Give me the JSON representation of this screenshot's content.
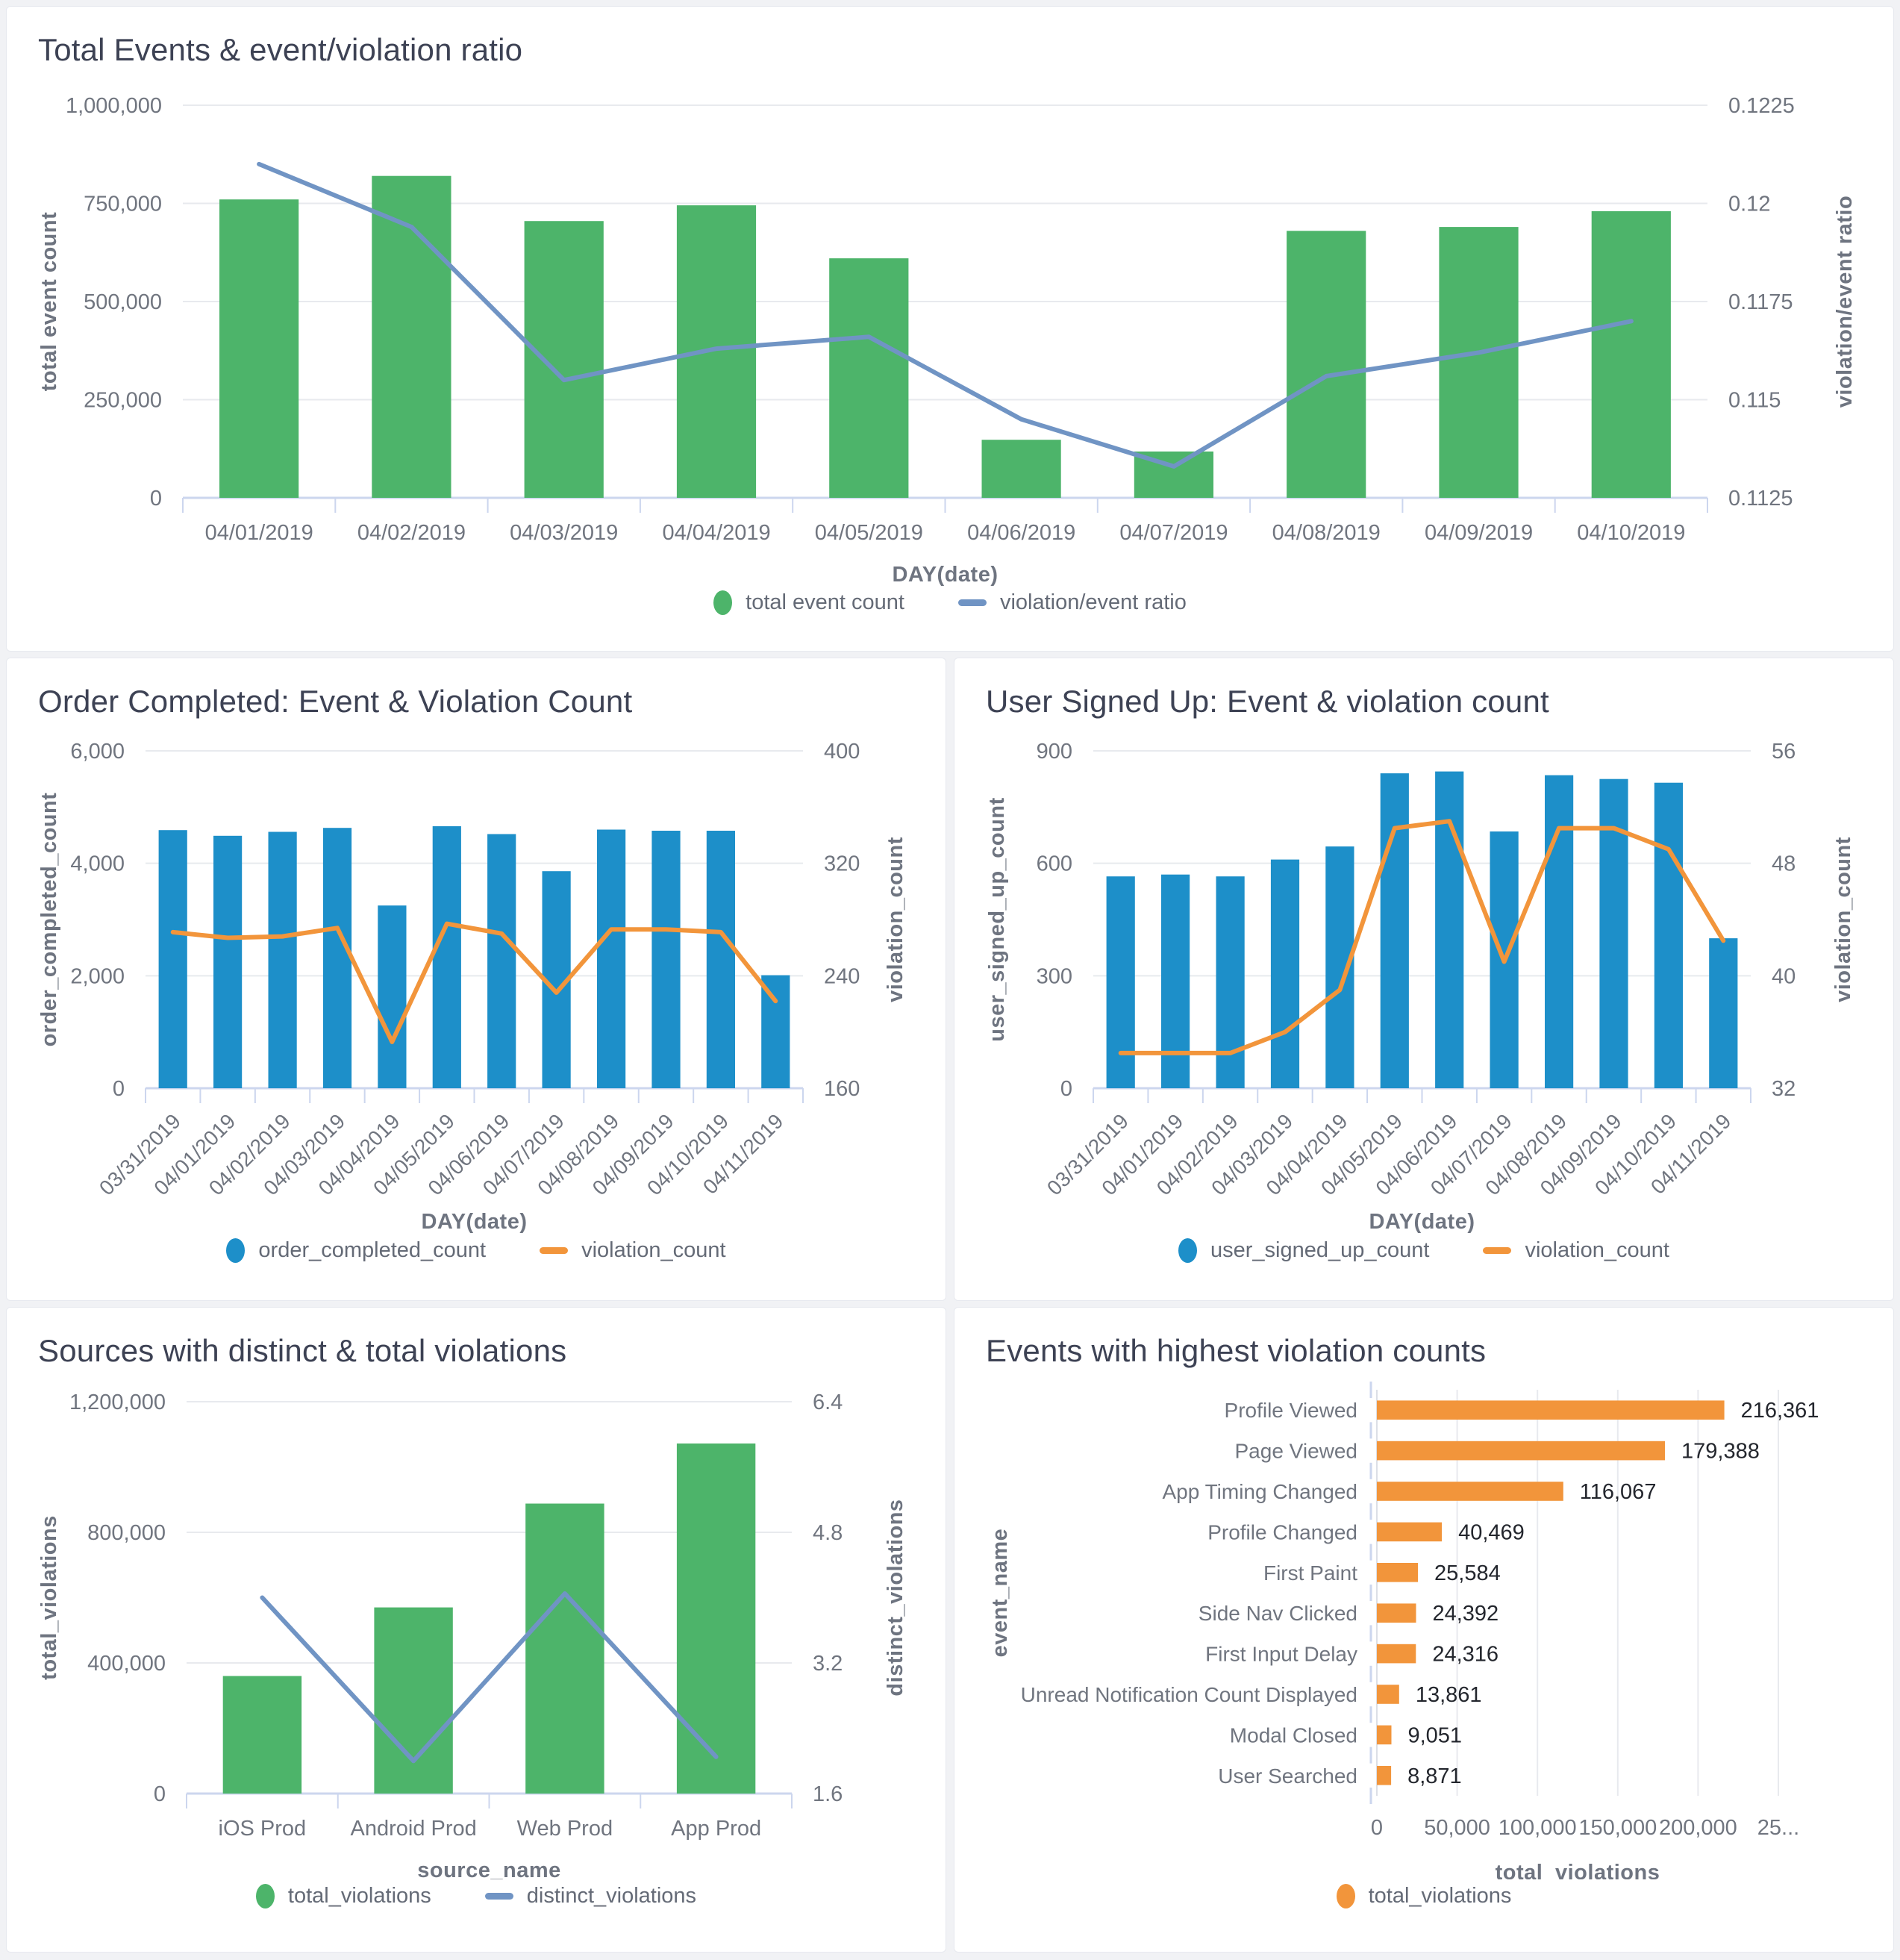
{
  "colors": {
    "green": "#4db46a",
    "blue": "#1d8fc9",
    "orange": "#f2953b",
    "slate_line": "#7094c4",
    "grid": "#e8eaee",
    "axis_line": "#ccd6ee",
    "tick_mark": "#ccd6ee",
    "tick_text": "#70757f",
    "axis_title": "#6e7480",
    "panel_title": "#3d4254",
    "value_label": "#23262d"
  },
  "chart_data": [
    {
      "type": "combo",
      "title": "Total Events & event/violation ratio",
      "categories": [
        "04/01/2019",
        "04/02/2019",
        "04/03/2019",
        "04/04/2019",
        "04/05/2019",
        "04/06/2019",
        "04/07/2019",
        "04/08/2019",
        "04/09/2019",
        "04/10/2019"
      ],
      "bar_series": {
        "name": "total event count",
        "color": "#4db46a",
        "values": [
          760000,
          820000,
          705000,
          745000,
          610000,
          148000,
          118000,
          680000,
          690000,
          730000
        ]
      },
      "line_series": {
        "name": "violation/event ratio",
        "color": "#7094c4",
        "values": [
          0.121,
          0.1194,
          0.1155,
          0.1163,
          0.1166,
          0.1145,
          0.1133,
          0.1156,
          0.1162,
          0.117
        ]
      },
      "left_axis": {
        "title": "total event count",
        "min": 0,
        "max": 1000000,
        "ticks": [
          "0",
          "250,000",
          "500,000",
          "750,000",
          "1,000,000"
        ]
      },
      "right_axis": {
        "title": "violation/event ratio",
        "min": 0.1125,
        "max": 0.1225,
        "ticks": [
          "0.1125",
          "0.115",
          "0.1175",
          "0.12",
          "0.1225"
        ]
      },
      "x_title": "DAY(date)",
      "rotated_labels": false,
      "legend": [
        {
          "label": "total event count",
          "marker": "dot",
          "color": "#4db46a"
        },
        {
          "label": "violation/event ratio",
          "marker": "dash",
          "color": "#7094c4"
        }
      ]
    },
    {
      "type": "combo",
      "title": "Order Completed: Event & Violation Count",
      "categories": [
        "03/31/2019",
        "04/01/2019",
        "04/02/2019",
        "04/03/2019",
        "04/04/2019",
        "04/05/2019",
        "04/06/2019",
        "04/07/2019",
        "04/08/2019",
        "04/09/2019",
        "04/10/2019",
        "04/11/2019"
      ],
      "bar_series": {
        "name": "order_completed_count",
        "color": "#1d8fc9",
        "values": [
          4590,
          4490,
          4560,
          4630,
          3250,
          4660,
          4520,
          3860,
          4600,
          4580,
          4580,
          2010
        ]
      },
      "line_series": {
        "name": "violation_count",
        "color": "#f2953b",
        "values": [
          271,
          267,
          268,
          274,
          193,
          277,
          270,
          228,
          273,
          273,
          271,
          222
        ]
      },
      "left_axis": {
        "title": "order_completed_count",
        "min": 0,
        "max": 6000,
        "ticks": [
          "0",
          "2,000",
          "4,000",
          "6,000"
        ]
      },
      "right_axis": {
        "title": "violation_count",
        "min": 160,
        "max": 400,
        "ticks": [
          "160",
          "240",
          "320",
          "400"
        ]
      },
      "x_title": "DAY(date)",
      "rotated_labels": true,
      "legend": [
        {
          "label": "order_completed_count",
          "marker": "dot",
          "color": "#1d8fc9"
        },
        {
          "label": "violation_count",
          "marker": "dash",
          "color": "#f2953b"
        }
      ]
    },
    {
      "type": "combo",
      "title": "User Signed Up: Event & violation count",
      "categories": [
        "03/31/2019",
        "04/01/2019",
        "04/02/2019",
        "04/03/2019",
        "04/04/2019",
        "04/05/2019",
        "04/06/2019",
        "04/07/2019",
        "04/08/2019",
        "04/09/2019",
        "04/10/2019",
        "04/11/2019"
      ],
      "bar_series": {
        "name": "user_signed_up_count",
        "color": "#1d8fc9",
        "values": [
          565,
          570,
          565,
          610,
          645,
          840,
          845,
          685,
          835,
          825,
          815,
          400
        ]
      },
      "line_series": {
        "name": "violation_count",
        "color": "#f2953b",
        "values": [
          34.5,
          34.5,
          34.5,
          36,
          39,
          50.5,
          51,
          41,
          50.5,
          50.5,
          49,
          42.5
        ]
      },
      "left_axis": {
        "title": "user_signed_up_count",
        "min": 0,
        "max": 900,
        "ticks": [
          "0",
          "300",
          "600",
          "900"
        ]
      },
      "right_axis": {
        "title": "violation_count",
        "min": 32,
        "max": 56,
        "ticks": [
          "32",
          "40",
          "48",
          "56"
        ]
      },
      "x_title": "DAY(date)",
      "rotated_labels": true,
      "legend": [
        {
          "label": "user_signed_up_count",
          "marker": "dot",
          "color": "#1d8fc9"
        },
        {
          "label": "violation_count",
          "marker": "dash",
          "color": "#f2953b"
        }
      ]
    },
    {
      "type": "combo",
      "title": "Sources with distinct & total violations",
      "categories": [
        "iOS Prod",
        "Android Prod",
        "Web Prod",
        "App Prod"
      ],
      "bar_series": {
        "name": "total_violations",
        "color": "#4db46a",
        "values": [
          360000,
          570000,
          888000,
          1072000
        ]
      },
      "line_series": {
        "name": "distinct_violations",
        "color": "#7094c4",
        "values": [
          4.0,
          2.0,
          4.05,
          2.05
        ]
      },
      "left_axis": {
        "title": "total_violations",
        "min": 0,
        "max": 1200000,
        "ticks": [
          "0",
          "400,000",
          "800,000",
          "1,200,000"
        ]
      },
      "right_axis": {
        "title": "distinct_violations",
        "min": 1.6,
        "max": 6.4,
        "ticks": [
          "1.6",
          "3.2",
          "4.8",
          "6.4"
        ]
      },
      "x_title": "source_name",
      "rotated_labels": false,
      "legend": [
        {
          "label": "total_violations",
          "marker": "dot",
          "color": "#4db46a"
        },
        {
          "label": "distinct_violations",
          "marker": "dash",
          "color": "#7094c4"
        }
      ]
    },
    {
      "type": "hbar",
      "title": "Events with highest violation counts",
      "categories": [
        "Profile Viewed",
        "Page Viewed",
        "App Timing Changed",
        "Profile Changed",
        "First Paint",
        "Side Nav Clicked",
        "First Input Delay",
        "Unread Notification Count Displayed",
        "Modal Closed",
        "User Searched"
      ],
      "values": [
        216361,
        179388,
        116067,
        40469,
        25584,
        24392,
        24316,
        13861,
        9051,
        8871
      ],
      "value_labels": [
        "216,361",
        "179,388",
        "116,067",
        "40,469",
        "25,584",
        "24,392",
        "24,316",
        "13,861",
        "9,051",
        "8,871"
      ],
      "bar_color": "#f2953b",
      "x_axis": {
        "title": "total_violations",
        "min": 0,
        "max": 250000,
        "ticks": [
          "0",
          "50,000",
          "100,000",
          "150,000",
          "200,000",
          "25..."
        ]
      },
      "y_title": "event_name",
      "legend": [
        {
          "label": "total_violations",
          "marker": "dot",
          "color": "#f2953b"
        }
      ]
    }
  ]
}
